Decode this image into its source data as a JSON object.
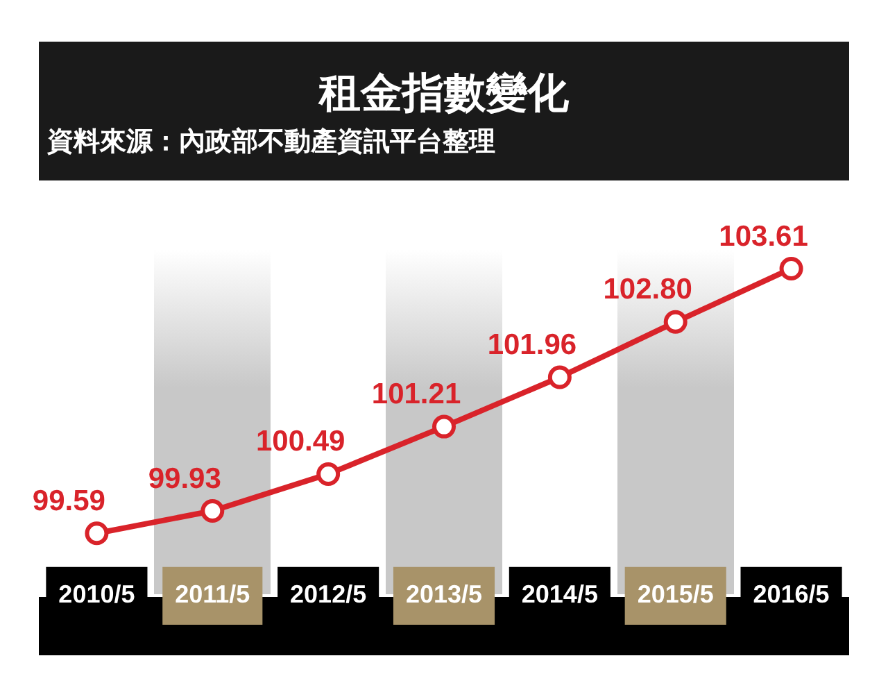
{
  "chart_data": {
    "type": "line",
    "title": "租金指數變化",
    "annotations": [
      "資料來源：內政部不動產資訊平台整理"
    ],
    "categories": [
      "2010/5",
      "2011/5",
      "2012/5",
      "2013/5",
      "2014/5",
      "2015/5",
      "2016/5"
    ],
    "series": [
      {
        "color": "#d9232a",
        "values": [
          99.59,
          99.93,
          100.49,
          101.21,
          101.96,
          102.8,
          103.61
        ],
        "value_labels": [
          "99.59",
          "99.93",
          "100.49",
          "101.21",
          "101.96",
          "102.80",
          "103.61"
        ]
      }
    ],
    "marker": "circle",
    "grid": false,
    "legend": false
  }
}
